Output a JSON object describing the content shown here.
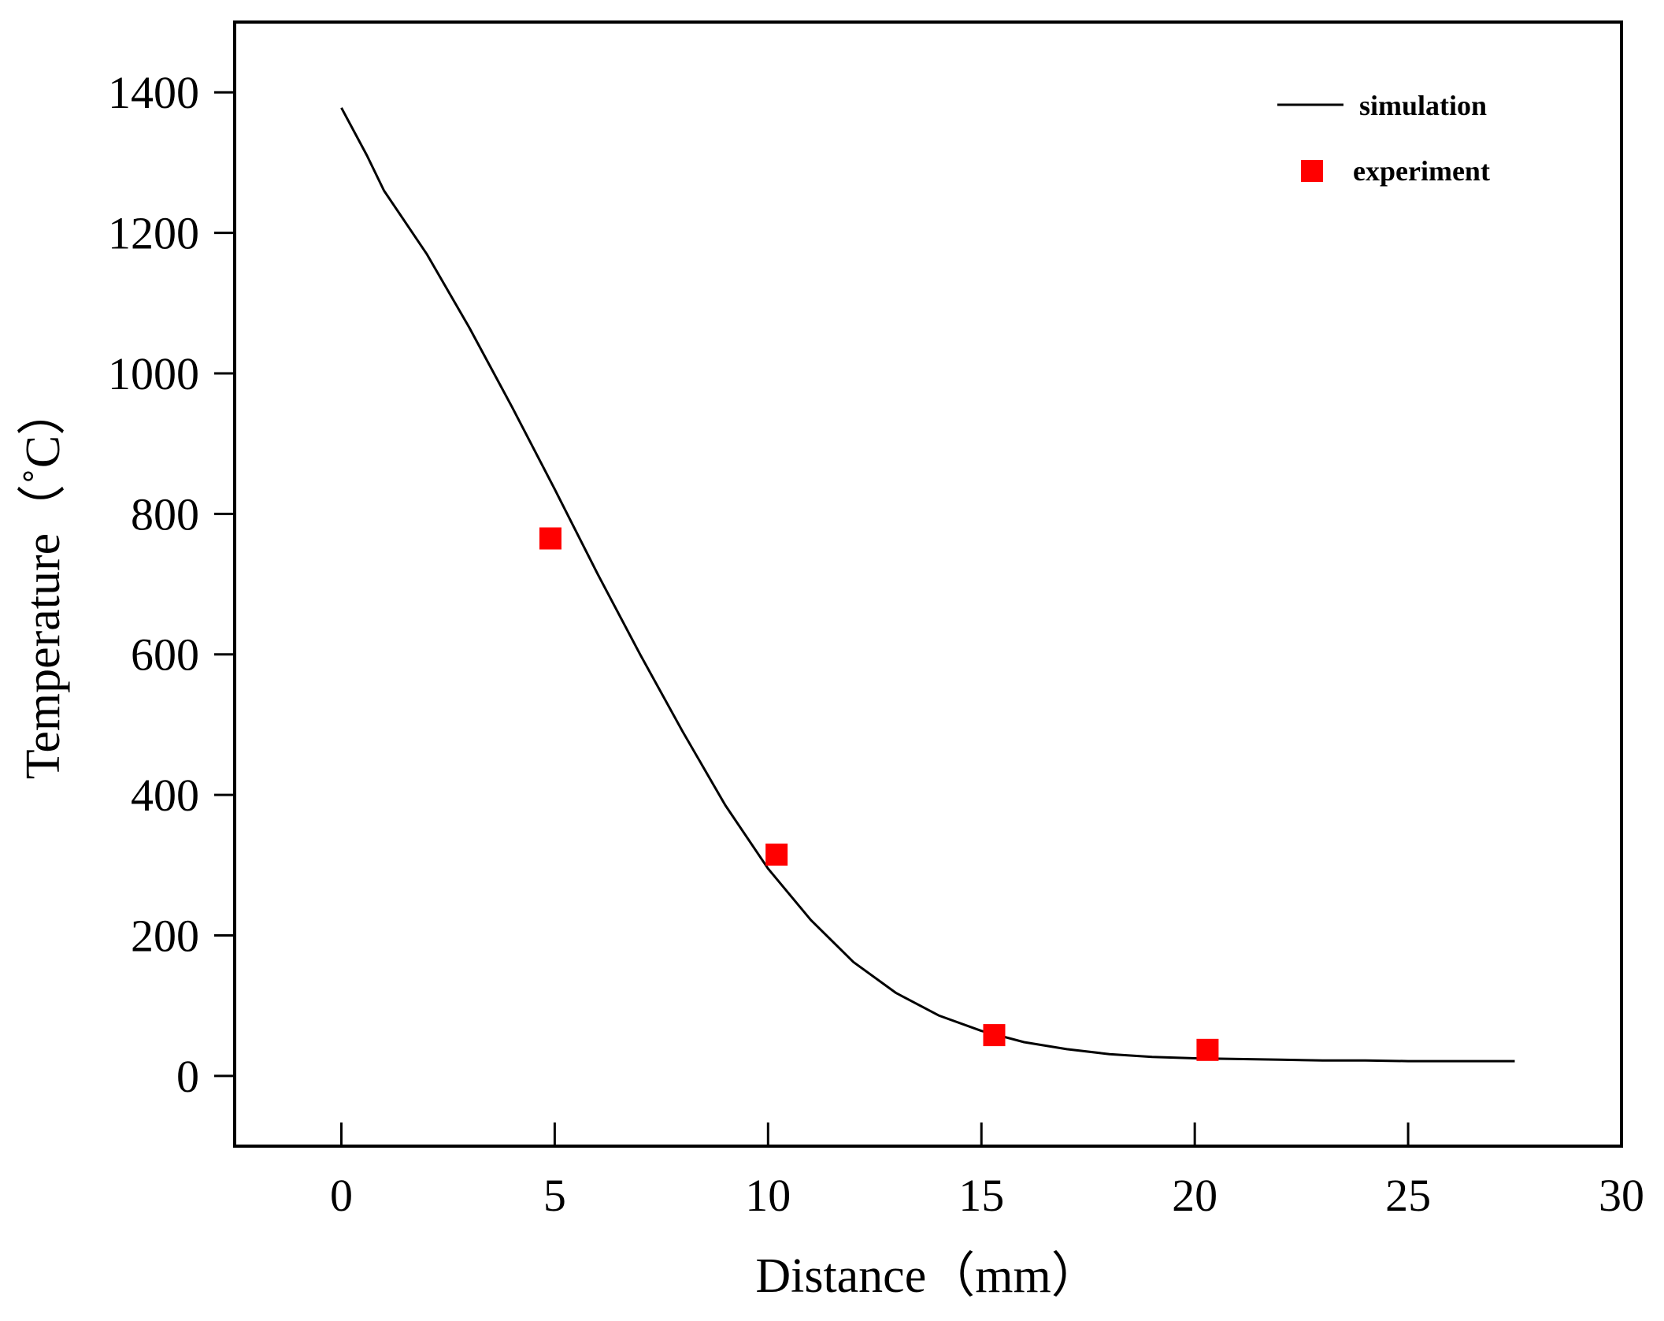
{
  "chart_data": {
    "type": "line",
    "title": "",
    "xlabel": "Distance（mm）",
    "ylabel": "Temperature（˚C）",
    "xlim": [
      -2.5,
      30
    ],
    "ylim": [
      -100,
      1500
    ],
    "x_ticks": [
      0,
      5,
      10,
      15,
      20,
      25,
      30
    ],
    "y_ticks": [
      0,
      200,
      400,
      600,
      800,
      1000,
      1200,
      1400
    ],
    "grid": false,
    "legend_position": "top-right",
    "series": [
      {
        "name": "simulation",
        "kind": "line",
        "color": "#000000",
        "x": [
          0,
          0.6,
          1,
          2,
          3,
          4,
          5,
          6,
          7,
          8,
          9,
          10,
          11,
          12,
          13,
          14,
          15,
          16,
          17,
          18,
          19,
          20,
          21,
          22,
          23,
          24,
          25,
          26,
          27,
          27.5
        ],
        "y": [
          1378,
          1310,
          1260,
          1170,
          1065,
          952,
          835,
          715,
          600,
          490,
          385,
          295,
          222,
          162,
          118,
          86,
          64,
          48,
          38,
          31,
          27,
          25,
          24,
          23,
          22,
          22,
          21,
          21,
          21,
          21
        ]
      },
      {
        "name": "experiment",
        "kind": "scatter",
        "marker": "square",
        "color": "#ff0000",
        "x": [
          4.9,
          10.2,
          15.3,
          20.3
        ],
        "y": [
          765,
          315,
          58,
          37
        ]
      }
    ]
  }
}
